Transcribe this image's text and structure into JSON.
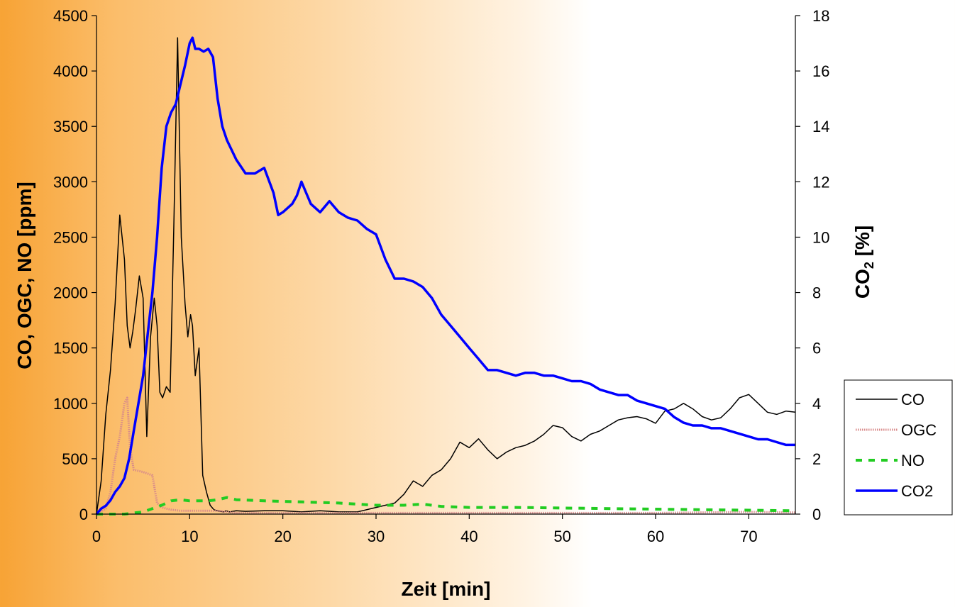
{
  "chart_data": {
    "type": "line",
    "title": "",
    "xlabel": "Zeit [min]",
    "ylabel_left": "CO, OGC, NO [ppm]",
    "ylabel_right": "CO2 [%]",
    "xlim": [
      0,
      75
    ],
    "ylim_left": [
      0,
      4500
    ],
    "ylim_right": [
      0,
      18
    ],
    "x_ticks": [
      "0",
      "10",
      "20",
      "30",
      "40",
      "50",
      "60",
      "70"
    ],
    "y_left_ticks": [
      "0",
      "500",
      "1000",
      "1500",
      "2000",
      "2500",
      "3000",
      "3500",
      "4000",
      "4500"
    ],
    "y_right_ticks": [
      "0",
      "2",
      "4",
      "6",
      "8",
      "10",
      "12",
      "14",
      "16",
      "18"
    ],
    "grid": false,
    "legend_position": "right",
    "series": [
      {
        "name": "CO",
        "axis": "left",
        "color": "#000000",
        "style": "solid",
        "x": [
          0,
          0.5,
          1,
          1.5,
          2,
          2.5,
          3,
          3.3,
          3.6,
          3.9,
          4.2,
          4.6,
          5,
          5.4,
          5.8,
          6.2,
          6.5,
          6.8,
          7.1,
          7.5,
          7.9,
          8.3,
          8.7,
          9.1,
          9.5,
          9.8,
          10.1,
          10.3,
          10.6,
          11,
          11.4,
          11.8,
          12.2,
          12.6,
          13,
          13.3,
          13.6,
          13.9,
          14.3,
          15,
          16,
          18,
          20,
          22,
          24,
          26,
          28,
          30,
          32,
          33,
          34,
          35,
          36,
          37,
          38,
          39,
          40,
          41,
          42,
          43,
          44,
          45,
          46,
          47,
          48,
          49,
          50,
          51,
          52,
          53,
          54,
          55,
          56,
          57,
          58,
          59,
          60,
          61,
          62,
          63,
          64,
          65,
          66,
          67,
          68,
          69,
          70,
          71,
          72,
          73,
          74,
          75
        ],
        "y": [
          0,
          300,
          900,
          1300,
          1900,
          2700,
          2300,
          1700,
          1500,
          1650,
          1850,
          2150,
          1950,
          700,
          1600,
          1950,
          1700,
          1100,
          1050,
          1150,
          1100,
          2600,
          4300,
          2500,
          1900,
          1600,
          1800,
          1700,
          1250,
          1500,
          350,
          200,
          80,
          40,
          30,
          25,
          20,
          30,
          20,
          30,
          25,
          30,
          30,
          20,
          30,
          20,
          20,
          60,
          100,
          180,
          300,
          250,
          350,
          400,
          500,
          650,
          600,
          680,
          580,
          500,
          560,
          600,
          620,
          660,
          720,
          800,
          780,
          700,
          660,
          720,
          750,
          800,
          850,
          870,
          880,
          860,
          820,
          930,
          950,
          1000,
          950,
          880,
          850,
          870,
          950,
          1050,
          1080,
          1000,
          920,
          900,
          930,
          920
        ]
      },
      {
        "name": "OGC",
        "axis": "left",
        "color": "#d88a8a",
        "style": "dotted",
        "x": [
          0,
          1,
          1.5,
          2,
          2.5,
          3,
          3.3,
          3.6,
          4,
          5,
          6,
          6.5,
          7,
          8,
          9,
          10,
          11,
          12,
          13,
          14,
          15,
          20,
          30,
          40,
          50,
          60,
          70,
          75
        ],
        "y": [
          0,
          50,
          200,
          500,
          700,
          1000,
          1050,
          600,
          400,
          380,
          350,
          100,
          60,
          40,
          30,
          30,
          30,
          30,
          30,
          20,
          10,
          10,
          10,
          10,
          10,
          10,
          20,
          15
        ]
      },
      {
        "name": "NO",
        "axis": "left",
        "color": "#22cc22",
        "style": "dashed",
        "x": [
          0,
          3,
          5,
          6,
          7,
          8,
          9,
          10,
          12,
          13,
          14,
          15,
          18,
          22,
          26,
          30,
          33,
          35,
          37,
          40,
          45,
          50,
          55,
          60,
          65,
          70,
          75
        ],
        "y": [
          0,
          0,
          20,
          50,
          80,
          120,
          130,
          120,
          120,
          130,
          150,
          130,
          120,
          110,
          100,
          80,
          80,
          90,
          70,
          60,
          60,
          55,
          50,
          45,
          40,
          35,
          30
        ]
      },
      {
        "name": "CO2",
        "axis": "right",
        "color": "#0000ff",
        "style": "solid",
        "x": [
          0,
          0.5,
          1,
          1.5,
          2,
          2.5,
          3,
          3.5,
          4,
          4.5,
          5,
          5.5,
          6,
          6.5,
          7,
          7.5,
          8,
          8.5,
          9,
          9.5,
          10,
          10.3,
          10.6,
          11,
          11.5,
          12,
          12.5,
          13,
          13.5,
          14,
          15,
          16,
          17,
          18,
          19,
          19.5,
          20,
          21,
          21.5,
          22,
          22.5,
          23,
          24,
          25,
          26,
          27,
          28,
          29,
          30,
          31,
          32,
          33,
          34,
          35,
          36,
          37,
          38,
          39,
          40,
          41,
          42,
          43,
          44,
          45,
          46,
          47,
          48,
          49,
          50,
          51,
          52,
          53,
          54,
          55,
          56,
          57,
          58,
          59,
          60,
          61,
          62,
          63,
          64,
          65,
          66,
          67,
          68,
          69,
          70,
          71,
          72,
          73,
          74,
          75
        ],
        "y": [
          0,
          0.2,
          0.3,
          0.5,
          0.8,
          1.0,
          1.3,
          2.0,
          3.0,
          4.0,
          5.0,
          6.5,
          8.0,
          10.0,
          12.5,
          14.0,
          14.5,
          14.8,
          15.5,
          16.2,
          17.0,
          17.2,
          16.8,
          16.8,
          16.7,
          16.8,
          16.5,
          15.0,
          14.0,
          13.5,
          12.8,
          12.3,
          12.3,
          12.5,
          11.6,
          10.8,
          10.9,
          11.2,
          11.5,
          12.0,
          11.6,
          11.2,
          10.9,
          11.3,
          10.9,
          10.7,
          10.6,
          10.3,
          10.1,
          9.2,
          8.5,
          8.5,
          8.4,
          8.2,
          7.8,
          7.2,
          6.8,
          6.4,
          6.0,
          5.6,
          5.2,
          5.2,
          5.1,
          5.0,
          5.1,
          5.1,
          5.0,
          5.0,
          4.9,
          4.8,
          4.8,
          4.7,
          4.5,
          4.4,
          4.3,
          4.3,
          4.1,
          4.0,
          3.9,
          3.8,
          3.5,
          3.3,
          3.2,
          3.2,
          3.1,
          3.1,
          3.0,
          2.9,
          2.8,
          2.7,
          2.7,
          2.6,
          2.5,
          2.5
        ]
      }
    ]
  }
}
